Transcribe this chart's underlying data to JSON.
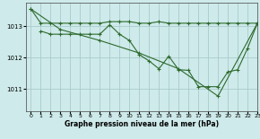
{
  "line1_x": [
    0,
    1,
    2,
    3,
    4,
    5,
    6,
    7,
    8,
    9,
    10,
    11,
    12,
    13,
    14,
    15,
    16,
    17,
    18,
    19,
    20,
    21,
    22,
    23
  ],
  "line1_y": [
    1013.55,
    1013.1,
    1013.1,
    1013.1,
    1013.1,
    1013.1,
    1013.1,
    1013.1,
    1013.15,
    1013.15,
    1013.15,
    1013.1,
    1013.1,
    1013.15,
    1013.1,
    1013.1,
    1013.1,
    1013.1,
    1013.1,
    1013.1,
    1013.1,
    1013.1,
    1013.1,
    1013.1
  ],
  "line2_x": [
    1,
    2,
    3,
    4,
    5,
    6,
    7,
    8,
    9,
    10,
    11,
    12,
    13,
    14,
    15,
    16,
    17,
    18,
    19,
    20,
    21,
    22,
    23
  ],
  "line2_y": [
    1012.85,
    1012.75,
    1012.75,
    1012.75,
    1012.75,
    1012.75,
    1012.75,
    1013.05,
    1012.75,
    1012.55,
    1012.1,
    1011.9,
    1011.65,
    1012.05,
    1011.62,
    1011.6,
    1011.08,
    1011.08,
    1011.08,
    1011.55,
    1011.62,
    1012.3,
    1013.1
  ],
  "line3_x": [
    0,
    3,
    7,
    11,
    15,
    19,
    23
  ],
  "line3_y": [
    1013.55,
    1012.9,
    1012.55,
    1012.15,
    1011.65,
    1010.78,
    1013.1
  ],
  "line_color": "#2d6a2d",
  "bg_color": "#ceeaea",
  "grid_color": "#aacccc",
  "xlabel": "Graphe pression niveau de la mer (hPa)",
  "ylim": [
    1010.3,
    1013.75
  ],
  "xlim": [
    -0.5,
    23
  ],
  "yticks": [
    1011,
    1012,
    1013
  ],
  "xticks": [
    0,
    1,
    2,
    3,
    4,
    5,
    6,
    7,
    8,
    9,
    10,
    11,
    12,
    13,
    14,
    15,
    16,
    17,
    18,
    19,
    20,
    21,
    22,
    23
  ]
}
